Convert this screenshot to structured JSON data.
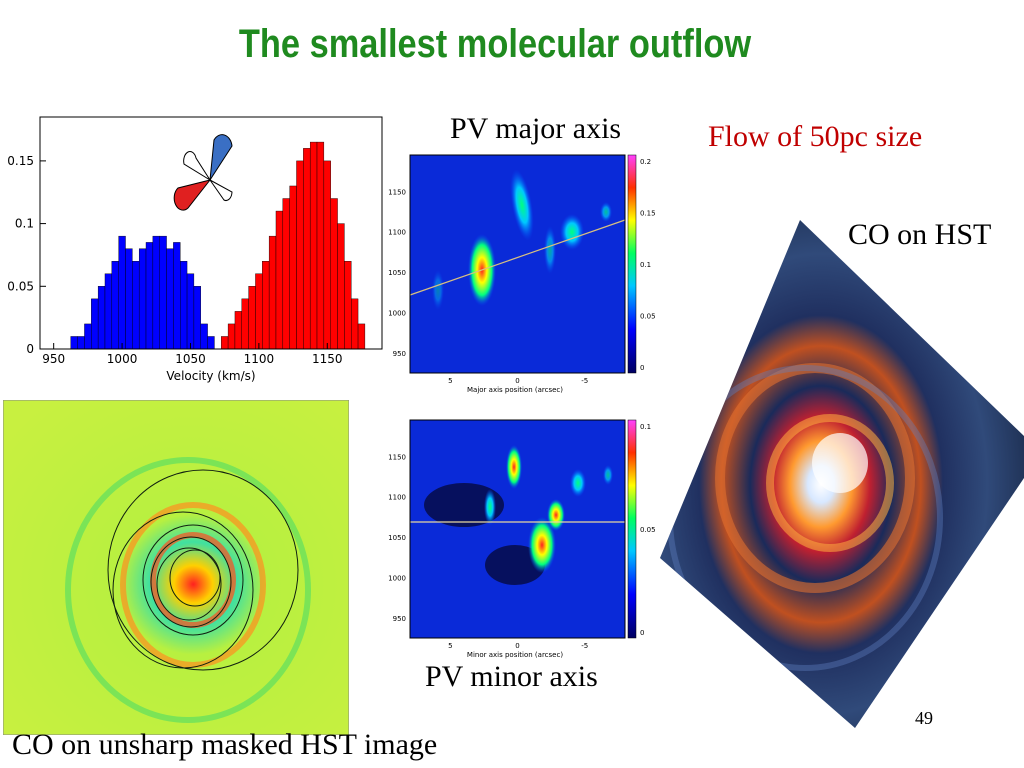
{
  "slide": {
    "title": "The smallest molecular outflow",
    "flow_label": "Flow of 50pc size",
    "pv_major_label": "PV major axis",
    "pv_minor_label": "PV minor axis",
    "co_hst_label": "CO on HST",
    "co_unsharp_label": "CO on unsharp masked HST image",
    "page_number": "49"
  },
  "chart_data": [
    {
      "type": "bar",
      "xlabel": "Velocity (km/s)",
      "ylabel": "",
      "xlim": [
        940,
        1190
      ],
      "ylim": [
        0,
        0.185
      ],
      "xticks": [
        "950",
        "1000",
        "1050",
        "1100",
        "1150"
      ],
      "yticks": [
        "0",
        "0.05",
        "0.1",
        "0.15"
      ],
      "colors": {
        "blue_lobe": "#0000ff",
        "red_lobe": "#ff0000"
      },
      "series": [
        {
          "x": [
            965,
            970,
            975,
            980,
            985,
            990,
            995,
            1000,
            1005,
            1010,
            1015,
            1020,
            1025,
            1030,
            1035,
            1040,
            1045,
            1050,
            1055,
            1060,
            1065
          ],
          "values": [
            0.01,
            0.01,
            0.02,
            0.04,
            0.05,
            0.06,
            0.07,
            0.09,
            0.08,
            0.07,
            0.08,
            0.085,
            0.09,
            0.09,
            0.08,
            0.085,
            0.07,
            0.06,
            0.05,
            0.02,
            0.01
          ]
        },
        {
          "x": [
            1075,
            1080,
            1085,
            1090,
            1095,
            1100,
            1105,
            1110,
            1115,
            1120,
            1125,
            1130,
            1135,
            1140,
            1145,
            1150,
            1155,
            1160,
            1165,
            1170,
            1175
          ],
          "values": [
            0.01,
            0.02,
            0.03,
            0.04,
            0.05,
            0.06,
            0.07,
            0.09,
            0.11,
            0.12,
            0.13,
            0.15,
            0.16,
            0.165,
            0.165,
            0.15,
            0.12,
            0.1,
            0.07,
            0.04,
            0.02
          ]
        }
      ]
    },
    {
      "type": "heatmap",
      "xlabel": "Major axis position (arcsec)",
      "ylabel": "",
      "xticks": [
        "5",
        "0",
        "-5"
      ],
      "yticks": [
        "1150",
        "1100",
        "1050",
        "1000",
        "950"
      ],
      "colorbar_ticks": [
        "0.2",
        "0.15",
        "0.1",
        "0.05",
        "0"
      ]
    },
    {
      "type": "heatmap",
      "xlabel": "Minor axis position (arcsec)",
      "ylabel": "",
      "xticks": [
        "5",
        "0",
        "-5"
      ],
      "yticks": [
        "1150",
        "1100",
        "1050",
        "1000",
        "950"
      ],
      "colorbar_ticks": [
        "0.1",
        "0.05",
        "0"
      ]
    }
  ]
}
